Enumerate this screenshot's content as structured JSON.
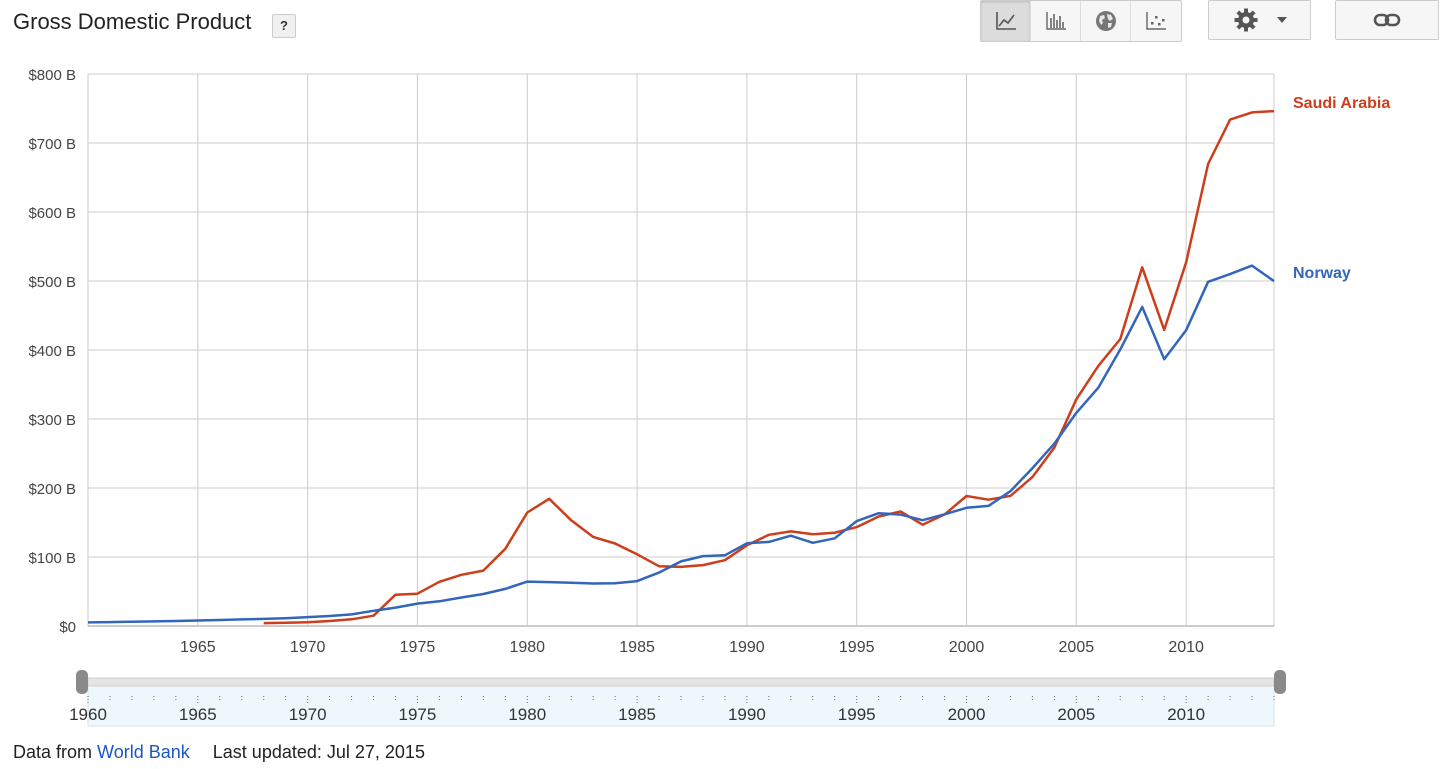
{
  "header": {
    "title": "Gross Domestic Product",
    "help_label": "?"
  },
  "toolbar": {
    "buttons": [
      {
        "icon": "line-chart-icon",
        "active": true
      },
      {
        "icon": "bar-chart-icon",
        "active": false
      },
      {
        "icon": "globe-icon",
        "active": false
      },
      {
        "icon": "scatter-chart-icon",
        "active": false
      }
    ],
    "settings_icon": "gear-icon",
    "dropdown_icon": "caret-down-icon",
    "link_icon": "link-icon"
  },
  "chart_data": {
    "type": "line",
    "title": "",
    "xlabel": "",
    "ylabel": "",
    "xlim": [
      1960,
      2014
    ],
    "ylim": [
      0,
      800
    ],
    "y_ticks": [
      {
        "value": 0,
        "label": "$0"
      },
      {
        "value": 100,
        "label": "$100 B"
      },
      {
        "value": 200,
        "label": "$200 B"
      },
      {
        "value": 300,
        "label": "$300 B"
      },
      {
        "value": 400,
        "label": "$400 B"
      },
      {
        "value": 500,
        "label": "$500 B"
      },
      {
        "value": 600,
        "label": "$600 B"
      },
      {
        "value": 700,
        "label": "$700 B"
      },
      {
        "value": 800,
        "label": "$800 B"
      }
    ],
    "x_ticks": [
      {
        "value": 1965,
        "label": "1965"
      },
      {
        "value": 1970,
        "label": "1970"
      },
      {
        "value": 1975,
        "label": "1975"
      },
      {
        "value": 1980,
        "label": "1980"
      },
      {
        "value": 1985,
        "label": "1985"
      },
      {
        "value": 1990,
        "label": "1990"
      },
      {
        "value": 1995,
        "label": "1995"
      },
      {
        "value": 2000,
        "label": "2000"
      },
      {
        "value": 2005,
        "label": "2005"
      },
      {
        "value": 2010,
        "label": "2010"
      }
    ],
    "grid": true,
    "legend": "right, labels at series end",
    "series": [
      {
        "name": "Saudi Arabia",
        "color": "#cc3e1c",
        "x": [
          1968,
          1969,
          1970,
          1971,
          1972,
          1973,
          1974,
          1975,
          1976,
          1977,
          1978,
          1979,
          1980,
          1981,
          1982,
          1983,
          1984,
          1985,
          1986,
          1987,
          1988,
          1989,
          1990,
          1991,
          1992,
          1993,
          1994,
          1995,
          1996,
          1997,
          1998,
          1999,
          2000,
          2001,
          2002,
          2003,
          2004,
          2005,
          2006,
          2007,
          2008,
          2009,
          2010,
          2011,
          2012,
          2013,
          2014
        ],
        "values": [
          4.2,
          4.7,
          5.4,
          7.2,
          9.7,
          14.9,
          45.4,
          46.8,
          64.0,
          74.2,
          80.3,
          111.9,
          164.5,
          184.3,
          153.2,
          129.2,
          119.6,
          103.9,
          86.7,
          85.7,
          88.3,
          95.3,
          117.0,
          132.2,
          137.1,
          132.9,
          135.2,
          143.3,
          158.7,
          165.9,
          146.8,
          161.7,
          188.4,
          183.0,
          188.6,
          215.8,
          258.7,
          328.5,
          376.9,
          416.0,
          519.8,
          429.1,
          526.8,
          669.5,
          733.9,
          744.3,
          746.2
        ]
      },
      {
        "name": "Norway",
        "color": "#3366bb",
        "x": [
          1960,
          1961,
          1962,
          1963,
          1964,
          1965,
          1966,
          1967,
          1968,
          1969,
          1970,
          1971,
          1972,
          1973,
          1974,
          1975,
          1976,
          1977,
          1978,
          1979,
          1980,
          1981,
          1982,
          1983,
          1984,
          1985,
          1986,
          1987,
          1988,
          1989,
          1990,
          1991,
          1992,
          1993,
          1994,
          1995,
          1996,
          1997,
          1998,
          1999,
          2000,
          2001,
          2002,
          2003,
          2004,
          2005,
          2006,
          2007,
          2008,
          2009,
          2010,
          2011,
          2012,
          2013,
          2014
        ],
        "values": [
          5.2,
          5.7,
          6.2,
          6.6,
          7.2,
          8.0,
          8.7,
          9.6,
          10.3,
          11.3,
          12.9,
          14.5,
          16.8,
          22.0,
          26.7,
          32.5,
          35.8,
          41.3,
          46.4,
          53.7,
          64.3,
          63.6,
          62.6,
          61.6,
          61.9,
          65.1,
          77.4,
          93.6,
          101.3,
          102.4,
          119.8,
          121.9,
          130.9,
          120.6,
          127.1,
          152.0,
          163.5,
          161.4,
          153.4,
          161.9,
          171.3,
          174.0,
          195.4,
          228.7,
          264.4,
          308.9,
          345.4,
          400.9,
          462.5,
          386.6,
          428.5,
          498.8,
          510.0,
          522.3,
          499.8
        ]
      }
    ]
  },
  "range_slider": {
    "start": 1960,
    "end": 2014,
    "labels": [
      {
        "value": 1960,
        "label": "1960"
      },
      {
        "value": 1965,
        "label": "1965"
      },
      {
        "value": 1970,
        "label": "1970"
      },
      {
        "value": 1975,
        "label": "1975"
      },
      {
        "value": 1980,
        "label": "1980"
      },
      {
        "value": 1985,
        "label": "1985"
      },
      {
        "value": 1990,
        "label": "1990"
      },
      {
        "value": 1995,
        "label": "1995"
      },
      {
        "value": 2000,
        "label": "2000"
      },
      {
        "value": 2005,
        "label": "2005"
      },
      {
        "value": 2010,
        "label": "2010"
      }
    ]
  },
  "footer": {
    "source_prefix": "Data from",
    "source_link": "World Bank",
    "last_updated": "Last updated: Jul 27, 2015"
  }
}
